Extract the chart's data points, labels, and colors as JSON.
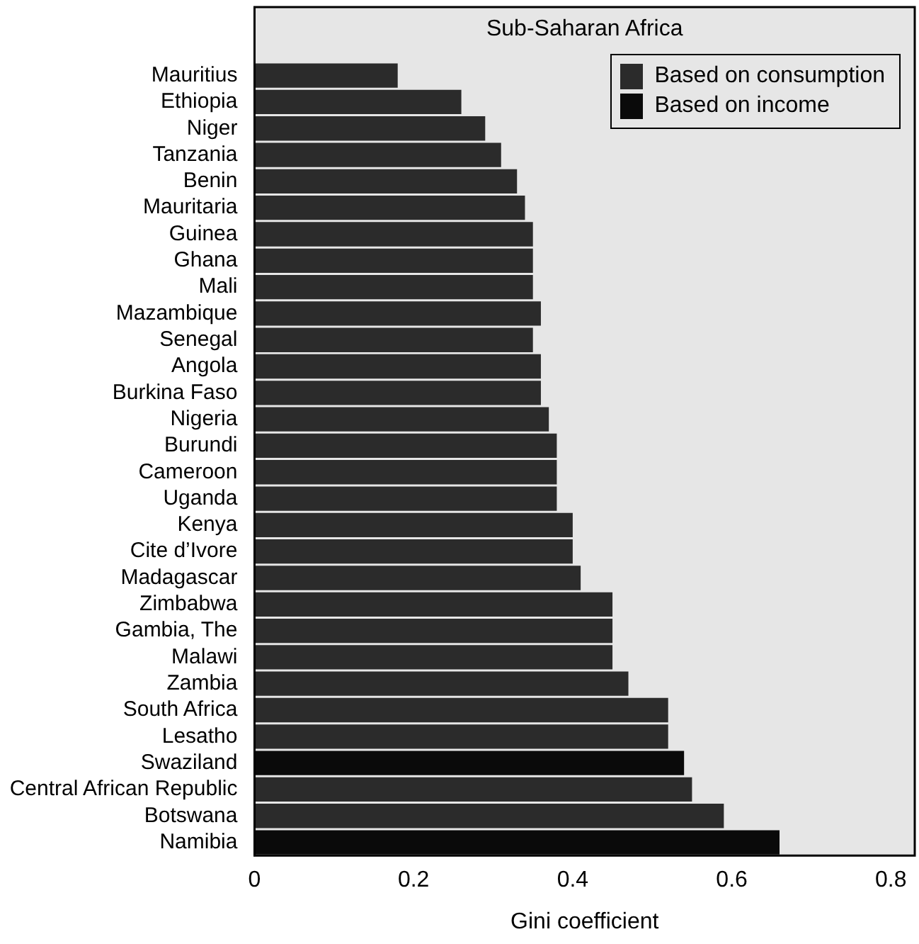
{
  "chart_data": {
    "type": "bar",
    "orientation": "horizontal",
    "title": "Sub-Saharan Africa",
    "xlabel": "Gini coefficient",
    "categories": [
      "Mauritius",
      "Ethiopia",
      "Niger",
      "Tanzania",
      "Benin",
      "Mauritaria",
      "Guinea",
      "Ghana",
      "Mali",
      "Mazambique",
      "Senegal",
      "Angola",
      "Burkina Faso",
      "Nigeria",
      "Burundi",
      "Cameroon",
      "Uganda",
      "Kenya",
      "Cite d’Ivore",
      "Madagascar",
      "Zimbabwa",
      "Gambia, The",
      "Malawi",
      "Zambia",
      "South Africa",
      "Lesatho",
      "Swaziland",
      "Central African Republic",
      "Botswana",
      "Namibia"
    ],
    "series": [
      {
        "name": "Based on consumption",
        "color": "#2b2b2b",
        "values": [
          0.18,
          0.26,
          0.29,
          0.31,
          0.33,
          0.34,
          0.35,
          0.35,
          0.35,
          0.36,
          0.35,
          0.36,
          0.36,
          0.37,
          0.38,
          0.38,
          0.38,
          0.4,
          0.4,
          0.41,
          0.45,
          0.45,
          0.45,
          0.47,
          0.52,
          0.52,
          null,
          0.55,
          0.59,
          null
        ]
      },
      {
        "name": "Based on income",
        "color": "#0a0a0a",
        "values": [
          null,
          null,
          null,
          null,
          null,
          null,
          null,
          null,
          null,
          null,
          null,
          null,
          null,
          null,
          null,
          null,
          null,
          null,
          null,
          null,
          null,
          null,
          null,
          null,
          null,
          null,
          0.54,
          null,
          null,
          0.66
        ]
      }
    ],
    "xlim": [
      0,
      0.83
    ],
    "xticks": [
      0,
      0.2,
      0.4,
      0.6,
      0.8
    ],
    "grid": false,
    "legend": "top right"
  }
}
